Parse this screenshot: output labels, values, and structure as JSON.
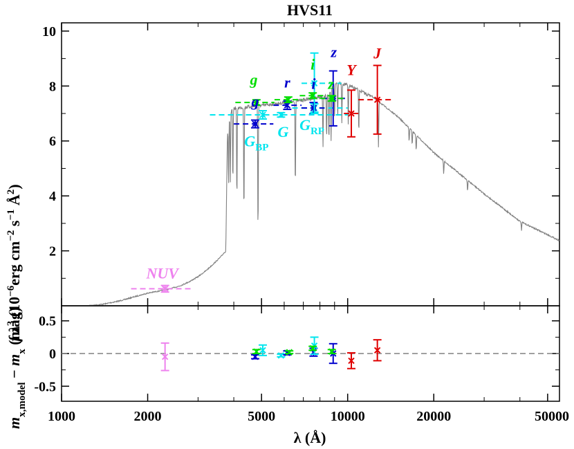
{
  "chart_data": {
    "type": "scatter",
    "title": "HVS11",
    "xlabel": "λ (Å)",
    "x_scale": "log",
    "xlim": [
      1000,
      55000
    ],
    "x_ticks": [
      1000,
      2000,
      5000,
      10000,
      20000,
      50000
    ],
    "x_tick_labels": [
      "1000",
      "2000",
      "5000",
      "10000",
      "20000",
      "50000"
    ],
    "colors": {
      "model": "#808080",
      "NUV": "#ee82ee",
      "blue": "#0000cd",
      "cyan": "#00e5ee",
      "green": "#00dd00",
      "red": "#e00000",
      "zero_line": "#808080"
    },
    "top_panel": {
      "ylabel": "f λ³ (10⁻⁶erg cm⁻² s⁻¹ Å²)",
      "ylim": [
        0,
        10.3
      ],
      "y_ticks": [
        2,
        4,
        6,
        8,
        10
      ],
      "y_tick_labels": [
        "2",
        "4",
        "6",
        "8",
        "10"
      ],
      "model_spectrum": {
        "continuum": [
          [
            1250,
            0.02
          ],
          [
            1400,
            0.08
          ],
          [
            1600,
            0.2
          ],
          [
            1800,
            0.35
          ],
          [
            2000,
            0.48
          ],
          [
            2200,
            0.56
          ],
          [
            2400,
            0.64
          ],
          [
            2600,
            0.75
          ],
          [
            2800,
            0.9
          ],
          [
            3000,
            1.08
          ],
          [
            3200,
            1.3
          ],
          [
            3400,
            1.55
          ],
          [
            3600,
            1.8
          ],
          [
            3700,
            1.95
          ],
          [
            3750,
            2.0
          ],
          [
            3800,
            6.3
          ],
          [
            3900,
            7.1
          ],
          [
            4000,
            7.25
          ],
          [
            4500,
            7.3
          ],
          [
            5000,
            7.35
          ],
          [
            6000,
            7.45
          ],
          [
            7000,
            7.55
          ],
          [
            8000,
            7.65
          ],
          [
            8500,
            7.7
          ],
          [
            9000,
            8.2
          ],
          [
            10000,
            8.1
          ],
          [
            12000,
            7.7
          ],
          [
            15000,
            6.9
          ],
          [
            20000,
            5.6
          ],
          [
            30000,
            4.1
          ],
          [
            40000,
            3.1
          ],
          [
            55000,
            2.4
          ]
        ],
        "absorption_lines": [
          [
            3835,
            2.2
          ],
          [
            3889,
            2.5
          ],
          [
            3970,
            2.7
          ],
          [
            4101,
            3.5
          ],
          [
            4340,
            4.0
          ],
          [
            4861,
            4.8
          ],
          [
            6563,
            3.2
          ],
          [
            8200,
            1.8
          ],
          [
            8440,
            1.6
          ],
          [
            8600,
            1.8
          ],
          [
            8750,
            1.9
          ],
          [
            9000,
            1.3
          ],
          [
            9230,
            1.3
          ],
          [
            9546,
            1.4
          ],
          [
            10049,
            1.5
          ],
          [
            10938,
            1.6
          ],
          [
            12818,
            1.7
          ],
          [
            16400,
            0.5
          ],
          [
            16810,
            0.5
          ],
          [
            17360,
            0.6
          ],
          [
            21660,
            0.5
          ],
          [
            26250,
            0.4
          ],
          [
            40510,
            0.3
          ]
        ]
      },
      "photometry": [
        {
          "band": "NUV",
          "color": "NUV",
          "wave": 2300,
          "wmin": 1750,
          "wmax": 2850,
          "flux": 0.62,
          "err": 0.12,
          "show_label": true,
          "label_wave": 2250,
          "label_flux": 1.0
        },
        {
          "band": "g",
          "color": "blue",
          "wave": 4750,
          "wmin": 4000,
          "wmax": 5500,
          "flux": 6.62,
          "err": 0.14,
          "show_label": true,
          "label_wave": 4750,
          "label_flux": 7.25
        },
        {
          "band": "g",
          "color": "green",
          "wave": 4800,
          "wmin": 4050,
          "wmax": 5550,
          "flux": 7.4,
          "err": 0.1,
          "show_label": true,
          "label_wave": 4700,
          "label_flux": 8.05
        },
        {
          "band": "G_BP",
          "color": "cyan",
          "wave": 5050,
          "wmin": 3300,
          "wmax": 6700,
          "flux": 6.95,
          "err": 0.15,
          "show_label": true,
          "label_wave": 4800,
          "label_flux": 5.8
        },
        {
          "band": "G",
          "color": "cyan",
          "wave": 5850,
          "wmin": 3300,
          "wmax": 10000,
          "flux": 6.95,
          "err": 0.08,
          "show_label": true,
          "label_wave": 5950,
          "label_flux": 6.15
        },
        {
          "band": "r",
          "color": "blue",
          "wave": 6150,
          "wmin": 5500,
          "wmax": 6900,
          "flux": 7.3,
          "err": 0.15,
          "show_label": true,
          "label_wave": 6150,
          "label_flux": 7.95
        },
        {
          "band": "r",
          "color": "green",
          "wave": 6200,
          "wmin": 5550,
          "wmax": 6950,
          "flux": 7.5,
          "err": 0.1,
          "show_label": false,
          "label_wave": 6200,
          "label_flux": 7.95
        },
        {
          "band": "G_RP",
          "color": "cyan",
          "wave": 7650,
          "wmin": 6400,
          "wmax": 10000,
          "flux": 7.2,
          "err": 0.15,
          "show_label": true,
          "label_wave": 7500,
          "label_flux": 6.4
        },
        {
          "band": "i",
          "color": "blue",
          "wave": 7600,
          "wmin": 6900,
          "wmax": 8300,
          "flux": 7.2,
          "err": 0.2,
          "show_label": true,
          "label_wave": 7600,
          "label_flux": 7.9
        },
        {
          "band": "i",
          "color": "cyan",
          "wave": 7650,
          "wmin": 6900,
          "wmax": 9500,
          "flux": 8.1,
          "err": 1.1,
          "show_label": false,
          "label_wave": 7650,
          "label_flux": 8.1
        },
        {
          "band": "i",
          "color": "green",
          "wave": 7550,
          "wmin": 6800,
          "wmax": 8300,
          "flux": 7.65,
          "err": 0.1,
          "show_label": true,
          "label_wave": 7550,
          "label_flux": 8.6
        },
        {
          "band": "z",
          "color": "blue",
          "wave": 8900,
          "wmin": 8100,
          "wmax": 9800,
          "flux": 7.55,
          "err": 1.0,
          "show_label": true,
          "label_wave": 8950,
          "label_flux": 9.05
        },
        {
          "band": "z",
          "color": "green",
          "wave": 8800,
          "wmin": 8000,
          "wmax": 9700,
          "flux": 7.55,
          "err": 0.1,
          "show_label": true,
          "label_wave": 8750,
          "label_flux": 7.9
        },
        {
          "band": "Y",
          "color": "red",
          "wave": 10300,
          "wmin": 9700,
          "wmax": 10900,
          "flux": 7.0,
          "err": 0.85,
          "show_label": true,
          "label_wave": 10300,
          "label_flux": 8.4
        },
        {
          "band": "J",
          "color": "red",
          "wave": 12700,
          "wmin": 10900,
          "wmax": 14400,
          "flux": 7.5,
          "err": 1.25,
          "show_label": true,
          "label_wave": 12700,
          "label_flux": 9.0
        }
      ],
      "labels": {
        "NUV": "NUV",
        "g": "g",
        "r": "r",
        "i": "i",
        "z": "z",
        "Y": "Y",
        "J": "J",
        "G": "G",
        "G_main": "G",
        "BP": "BP",
        "RP": "RP"
      }
    },
    "bottom_panel": {
      "ylabel": "m x,model − m x (mag)",
      "ylim": [
        -0.73,
        0.73
      ],
      "y_ticks": [
        -0.5,
        0,
        0.5
      ],
      "y_tick_labels": [
        "-0.5",
        "0",
        "0.5"
      ],
      "residuals": [
        {
          "band": "NUV",
          "color": "NUV",
          "wave": 2300,
          "value": -0.05,
          "err": 0.21
        },
        {
          "band": "g",
          "color": "blue",
          "wave": 4750,
          "value": -0.05,
          "err": 0.03
        },
        {
          "band": "g",
          "color": "green",
          "wave": 4800,
          "value": 0.03,
          "err": 0.03
        },
        {
          "band": "G_BP",
          "color": "cyan",
          "wave": 5050,
          "value": 0.05,
          "err": 0.08
        },
        {
          "band": "G",
          "color": "cyan",
          "wave": 5850,
          "value": -0.03,
          "err": 0.02
        },
        {
          "band": "r",
          "color": "blue",
          "wave": 6150,
          "value": 0.01,
          "err": 0.03
        },
        {
          "band": "r",
          "color": "green",
          "wave": 6250,
          "value": 0.02,
          "err": 0.02
        },
        {
          "band": "i",
          "color": "blue",
          "wave": 7600,
          "value": 0.02,
          "err": 0.06
        },
        {
          "band": "i",
          "color": "cyan",
          "wave": 7650,
          "value": 0.12,
          "err": 0.13
        },
        {
          "band": "i",
          "color": "green",
          "wave": 7550,
          "value": 0.08,
          "err": 0.03
        },
        {
          "band": "z",
          "color": "blue",
          "wave": 8900,
          "value": 0.0,
          "err": 0.15
        },
        {
          "band": "z",
          "color": "green",
          "wave": 8800,
          "value": 0.03,
          "err": 0.03
        },
        {
          "band": "Y",
          "color": "red",
          "wave": 10300,
          "value": -0.11,
          "err": 0.12
        },
        {
          "band": "J",
          "color": "red",
          "wave": 12700,
          "value": 0.05,
          "err": 0.16
        }
      ]
    }
  }
}
